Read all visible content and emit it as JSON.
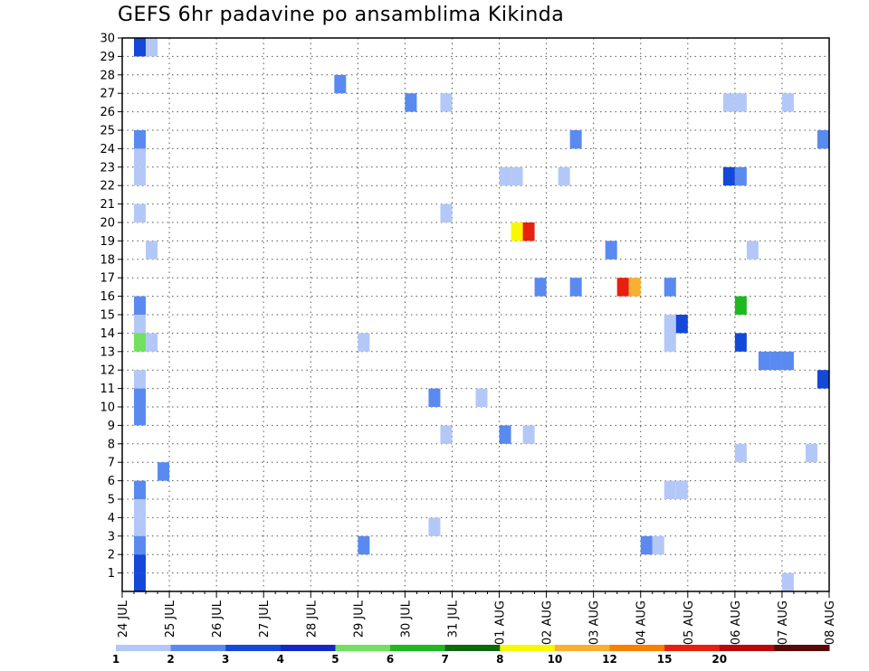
{
  "chart_data": {
    "type": "heatmap",
    "title": "GEFS 6hr padavine po ansamblima Kikinda",
    "members": [
      "1",
      "2",
      "3",
      "4",
      "5",
      "6",
      "7",
      "8",
      "9",
      "10",
      "11",
      "12",
      "13",
      "14",
      "15",
      "16",
      "17",
      "18",
      "19",
      "20",
      "21",
      "22",
      "23",
      "24",
      "25",
      "26",
      "27",
      "28",
      "29",
      "30"
    ],
    "x_labels": [
      "24 JUL",
      "25 JUL",
      "26 JUL",
      "27 JUL",
      "28 JUL",
      "29 JUL",
      "30 JUL",
      "31 JUL",
      "01 AUG",
      "02 AUG",
      "03 AUG",
      "04 AUG",
      "05 AUG",
      "06 AUG",
      "07 AUG",
      "08 AUG"
    ],
    "x_range": [
      0,
      15
    ],
    "y_range": [
      0,
      30
    ],
    "grid": true,
    "colorbar": {
      "colors": [
        "#b4c8f8",
        "#5a8af0",
        "#1448d8",
        "#1428c8",
        "#72e060",
        "#20b820",
        "#0e6a0e",
        "#f8f800",
        "#f8b030",
        "#f88000",
        "#e82010",
        "#b80808",
        "#5a0808"
      ],
      "labels": [
        "1",
        "2",
        "3",
        "4",
        "5",
        "6",
        "7",
        "8",
        "10",
        "12",
        "15",
        "20"
      ]
    },
    "cells": [
      {
        "x": 0.25,
        "y": 30,
        "color": "#1448d8"
      },
      {
        "x": 0.5,
        "y": 30,
        "color": "#b4c8f8"
      },
      {
        "x": 4.5,
        "y": 28,
        "color": "#5a8af0"
      },
      {
        "x": 6.0,
        "y": 27,
        "color": "#5a8af0"
      },
      {
        "x": 6.75,
        "y": 27,
        "color": "#b4c8f8"
      },
      {
        "x": 12.75,
        "y": 27,
        "color": "#b4c8f8"
      },
      {
        "x": 13.0,
        "y": 27,
        "color": "#b4c8f8"
      },
      {
        "x": 14.0,
        "y": 27,
        "color": "#b4c8f8"
      },
      {
        "x": 0.25,
        "y": 25,
        "color": "#5a8af0"
      },
      {
        "x": 9.5,
        "y": 25,
        "color": "#5a8af0"
      },
      {
        "x": 14.75,
        "y": 25,
        "color": "#5a8af0"
      },
      {
        "x": 0.25,
        "y": 24,
        "color": "#b4c8f8"
      },
      {
        "x": 0.25,
        "y": 23,
        "color": "#b4c8f8"
      },
      {
        "x": 8.0,
        "y": 23,
        "color": "#b4c8f8"
      },
      {
        "x": 8.25,
        "y": 23,
        "color": "#b4c8f8"
      },
      {
        "x": 9.25,
        "y": 23,
        "color": "#b4c8f8"
      },
      {
        "x": 12.75,
        "y": 23,
        "color": "#1448d8"
      },
      {
        "x": 13.0,
        "y": 23,
        "color": "#5a8af0"
      },
      {
        "x": 0.25,
        "y": 21,
        "color": "#b4c8f8"
      },
      {
        "x": 6.75,
        "y": 21,
        "color": "#b4c8f8"
      },
      {
        "x": 8.25,
        "y": 20,
        "color": "#f8f800"
      },
      {
        "x": 8.5,
        "y": 20,
        "color": "#e82010"
      },
      {
        "x": 0.5,
        "y": 19,
        "color": "#b4c8f8"
      },
      {
        "x": 10.25,
        "y": 19,
        "color": "#5a8af0"
      },
      {
        "x": 13.25,
        "y": 19,
        "color": "#b4c8f8"
      },
      {
        "x": 8.75,
        "y": 17,
        "color": "#5a8af0"
      },
      {
        "x": 9.5,
        "y": 17,
        "color": "#5a8af0"
      },
      {
        "x": 10.5,
        "y": 17,
        "color": "#e82010"
      },
      {
        "x": 10.75,
        "y": 17,
        "color": "#f8b030"
      },
      {
        "x": 11.5,
        "y": 17,
        "color": "#5a8af0"
      },
      {
        "x": 0.25,
        "y": 16,
        "color": "#5a8af0"
      },
      {
        "x": 13.0,
        "y": 16,
        "color": "#20b820"
      },
      {
        "x": 0.25,
        "y": 15,
        "color": "#b4c8f8"
      },
      {
        "x": 11.5,
        "y": 15,
        "color": "#b4c8f8"
      },
      {
        "x": 11.75,
        "y": 15,
        "color": "#1448d8"
      },
      {
        "x": 0.25,
        "y": 14,
        "color": "#72e060"
      },
      {
        "x": 0.5,
        "y": 14,
        "color": "#b4c8f8"
      },
      {
        "x": 5.0,
        "y": 14,
        "color": "#b4c8f8"
      },
      {
        "x": 11.5,
        "y": 14,
        "color": "#b4c8f8"
      },
      {
        "x": 13.0,
        "y": 14,
        "color": "#1448d8"
      },
      {
        "x": 13.5,
        "y": 13,
        "color": "#5a8af0"
      },
      {
        "x": 13.75,
        "y": 13,
        "color": "#5a8af0"
      },
      {
        "x": 14.0,
        "y": 13,
        "color": "#5a8af0"
      },
      {
        "x": 0.25,
        "y": 12,
        "color": "#b4c8f8"
      },
      {
        "x": 14.75,
        "y": 12,
        "color": "#1448d8"
      },
      {
        "x": 0.25,
        "y": 11,
        "color": "#5a8af0"
      },
      {
        "x": 6.5,
        "y": 11,
        "color": "#5a8af0"
      },
      {
        "x": 7.5,
        "y": 11,
        "color": "#b4c8f8"
      },
      {
        "x": 0.25,
        "y": 10,
        "color": "#5a8af0"
      },
      {
        "x": 6.75,
        "y": 9,
        "color": "#b4c8f8"
      },
      {
        "x": 8.0,
        "y": 9,
        "color": "#5a8af0"
      },
      {
        "x": 8.5,
        "y": 9,
        "color": "#b4c8f8"
      },
      {
        "x": 13.0,
        "y": 8,
        "color": "#b4c8f8"
      },
      {
        "x": 14.5,
        "y": 8,
        "color": "#b4c8f8"
      },
      {
        "x": 0.75,
        "y": 7,
        "color": "#5a8af0"
      },
      {
        "x": 0.25,
        "y": 6,
        "color": "#5a8af0"
      },
      {
        "x": 11.5,
        "y": 6,
        "color": "#b4c8f8"
      },
      {
        "x": 11.75,
        "y": 6,
        "color": "#b4c8f8"
      },
      {
        "x": 0.25,
        "y": 5,
        "color": "#b4c8f8"
      },
      {
        "x": 0.25,
        "y": 4,
        "color": "#b4c8f8"
      },
      {
        "x": 6.5,
        "y": 4,
        "color": "#b4c8f8"
      },
      {
        "x": 0.25,
        "y": 3,
        "color": "#5a8af0"
      },
      {
        "x": 5.0,
        "y": 3,
        "color": "#5a8af0"
      },
      {
        "x": 11.0,
        "y": 3,
        "color": "#5a8af0"
      },
      {
        "x": 11.25,
        "y": 3,
        "color": "#b4c8f8"
      },
      {
        "x": 0.25,
        "y": 2,
        "color": "#1448d8"
      },
      {
        "x": 0.25,
        "y": 1,
        "color": "#1448d8"
      },
      {
        "x": 14.0,
        "y": 1,
        "color": "#b4c8f8"
      }
    ]
  }
}
